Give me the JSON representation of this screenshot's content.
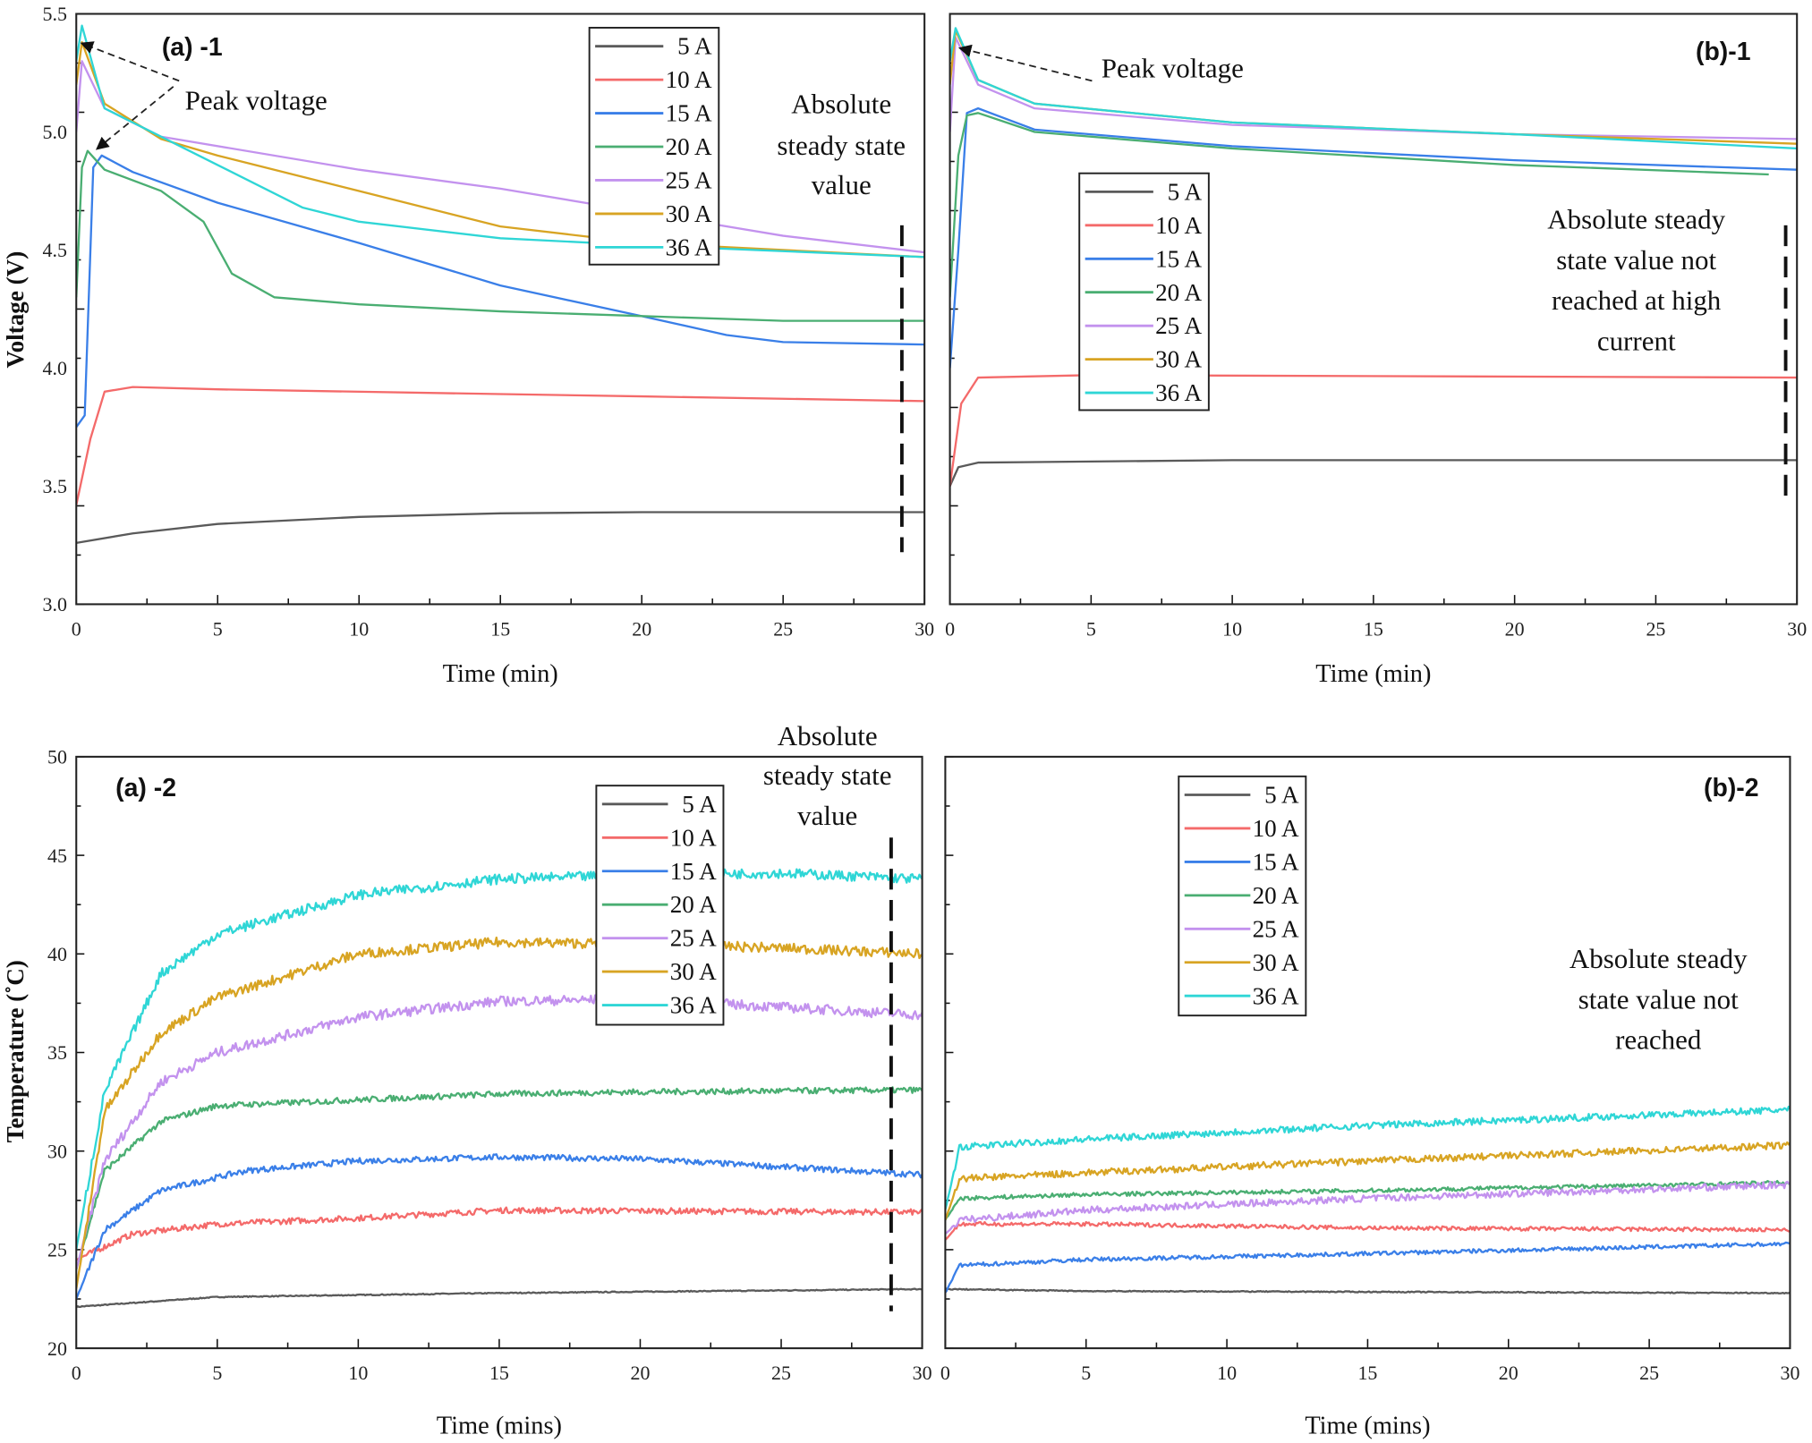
{
  "legend_labels": [
    "5 A",
    "10 A",
    "15 A",
    "20 A",
    "25 A",
    "30 A",
    "36 A"
  ],
  "colors": {
    "5 A": "#5a5a5a",
    "10 A": "#f46a6a",
    "15 A": "#3a7fe8",
    "20 A": "#4aae72",
    "25 A": "#c392ee",
    "30 A": "#d8a423",
    "36 A": "#2fd6d6"
  },
  "chart_data": [
    {
      "type": "line",
      "panel_label": "(a) -1",
      "xlabel": "Time (min)",
      "ylabel": "Voltage (V)",
      "xlim": [
        0,
        30
      ],
      "ylim": [
        3.0,
        5.5
      ],
      "xticks": [
        "0",
        "5",
        "10",
        "15",
        "20",
        "25",
        "30"
      ],
      "yticks": [
        "3.0",
        "3.5",
        "4.0",
        "4.5",
        "5.0",
        "5.5"
      ],
      "legend": "top-center",
      "annotations": [
        "Peak voltage",
        "Absolute",
        "steady state",
        "value"
      ],
      "dashed_line_x": 29.2,
      "series": [
        {
          "name": "5 A",
          "points": [
            [
              0,
              3.26
            ],
            [
              2,
              3.3
            ],
            [
              5,
              3.34
            ],
            [
              10,
              3.37
            ],
            [
              15,
              3.385
            ],
            [
              20,
              3.39
            ],
            [
              30,
              3.39
            ]
          ]
        },
        {
          "name": "10 A",
          "points": [
            [
              0,
              3.42
            ],
            [
              0.5,
              3.7
            ],
            [
              1,
              3.9
            ],
            [
              2,
              3.92
            ],
            [
              5,
              3.91
            ],
            [
              15,
              3.89
            ],
            [
              20,
              3.88
            ],
            [
              30,
              3.86
            ]
          ]
        },
        {
          "name": "15 A",
          "points": [
            [
              0,
              3.75
            ],
            [
              0.3,
              3.8
            ],
            [
              0.6,
              4.85
            ],
            [
              0.9,
              4.9
            ],
            [
              2,
              4.83
            ],
            [
              5,
              4.7
            ],
            [
              10,
              4.53
            ],
            [
              15,
              4.35
            ],
            [
              20,
              4.22
            ],
            [
              23,
              4.14
            ],
            [
              25,
              4.11
            ],
            [
              30,
              4.1
            ]
          ]
        },
        {
          "name": "20 A",
          "points": [
            [
              0,
              4.3
            ],
            [
              0.2,
              4.85
            ],
            [
              0.4,
              4.92
            ],
            [
              1,
              4.84
            ],
            [
              3,
              4.75
            ],
            [
              4.5,
              4.62
            ],
            [
              5.5,
              4.4
            ],
            [
              7,
              4.3
            ],
            [
              10,
              4.27
            ],
            [
              15,
              4.24
            ],
            [
              20,
              4.22
            ],
            [
              25,
              4.2
            ],
            [
              30,
              4.2
            ]
          ]
        },
        {
          "name": "25 A",
          "points": [
            [
              0,
              5.0
            ],
            [
              0.2,
              5.3
            ],
            [
              1,
              5.1
            ],
            [
              3,
              4.98
            ],
            [
              10,
              4.84
            ],
            [
              15,
              4.76
            ],
            [
              20,
              4.66
            ],
            [
              25,
              4.56
            ],
            [
              30,
              4.49
            ]
          ]
        },
        {
          "name": "30 A",
          "points": [
            [
              0,
              5.2
            ],
            [
              0.2,
              5.38
            ],
            [
              1,
              5.12
            ],
            [
              3,
              4.97
            ],
            [
              5,
              4.9
            ],
            [
              10,
              4.75
            ],
            [
              15,
              4.6
            ],
            [
              20,
              4.53
            ],
            [
              25,
              4.5
            ],
            [
              30,
              4.47
            ]
          ]
        },
        {
          "name": "36 A",
          "points": [
            [
              0,
              5.3
            ],
            [
              0.2,
              5.45
            ],
            [
              1,
              5.1
            ],
            [
              3,
              4.98
            ],
            [
              5,
              4.86
            ],
            [
              8,
              4.68
            ],
            [
              10,
              4.62
            ],
            [
              15,
              4.55
            ],
            [
              20,
              4.52
            ],
            [
              30,
              4.47
            ]
          ]
        }
      ]
    },
    {
      "type": "line",
      "panel_label": "(b)-1",
      "xlabel": "Time (min)",
      "ylabel": "",
      "xlim": [
        0,
        30
      ],
      "ylim": [
        3.0,
        5.5
      ],
      "xticks": [
        "0",
        "5",
        "10",
        "15",
        "20",
        "25",
        "30"
      ],
      "yticks": [],
      "legend": "left",
      "annotations": [
        "Peak voltage",
        "Absolute steady",
        "state value not",
        "reached at high",
        "current"
      ],
      "dashed_line_x": 29.6,
      "series": [
        {
          "name": "5 A",
          "points": [
            [
              0,
              3.5
            ],
            [
              0.3,
              3.58
            ],
            [
              1,
              3.6
            ],
            [
              10,
              3.61
            ],
            [
              30,
              3.61
            ]
          ]
        },
        {
          "name": "10 A",
          "points": [
            [
              0,
              3.5
            ],
            [
              0.4,
              3.85
            ],
            [
              1,
              3.96
            ],
            [
              5,
              3.97
            ],
            [
              30,
              3.96
            ]
          ]
        },
        {
          "name": "15 A",
          "points": [
            [
              0,
              4.0
            ],
            [
              0.3,
              4.5
            ],
            [
              0.6,
              5.08
            ],
            [
              1,
              5.1
            ],
            [
              3,
              5.01
            ],
            [
              10,
              4.94
            ],
            [
              20,
              4.88
            ],
            [
              30,
              4.84
            ]
          ]
        },
        {
          "name": "20 A",
          "points": [
            [
              0,
              4.3
            ],
            [
              0.3,
              4.9
            ],
            [
              0.6,
              5.07
            ],
            [
              1,
              5.08
            ],
            [
              3,
              5.0
            ],
            [
              10,
              4.93
            ],
            [
              20,
              4.86
            ],
            [
              29,
              4.82
            ]
          ]
        },
        {
          "name": "25 A",
          "points": [
            [
              0,
              5.0
            ],
            [
              0.2,
              5.4
            ],
            [
              1,
              5.2
            ],
            [
              3,
              5.1
            ],
            [
              10,
              5.03
            ],
            [
              20,
              4.99
            ],
            [
              30,
              4.97
            ]
          ]
        },
        {
          "name": "30 A",
          "points": [
            [
              0,
              5.2
            ],
            [
              0.2,
              5.43
            ],
            [
              1,
              5.22
            ],
            [
              3,
              5.12
            ],
            [
              10,
              5.04
            ],
            [
              20,
              4.99
            ],
            [
              30,
              4.95
            ]
          ]
        },
        {
          "name": "36 A",
          "points": [
            [
              0,
              5.3
            ],
            [
              0.2,
              5.44
            ],
            [
              1,
              5.22
            ],
            [
              3,
              5.12
            ],
            [
              10,
              5.04
            ],
            [
              20,
              4.99
            ],
            [
              30,
              4.93
            ]
          ]
        }
      ]
    },
    {
      "type": "line",
      "panel_label": "(a) -2",
      "xlabel": "Time (mins)",
      "ylabel": "Temperature (˚C)",
      "xlim": [
        0,
        30
      ],
      "ylim": [
        20,
        50
      ],
      "xticks": [
        "0",
        "5",
        "10",
        "15",
        "20",
        "25",
        "30"
      ],
      "yticks": [
        "20",
        "25",
        "30",
        "35",
        "40",
        "45",
        "50"
      ],
      "legend": "top-center",
      "annotations": [
        "Absolute",
        "steady state",
        "value"
      ],
      "dashed_line_x": 28.9,
      "series": [
        {
          "name": "5 A",
          "points": [
            [
              0,
              22.1
            ],
            [
              5,
              22.6
            ],
            [
              15,
              22.8
            ],
            [
              30,
              23.0
            ]
          ]
        },
        {
          "name": "10 A",
          "points": [
            [
              0,
              24.5
            ],
            [
              2,
              25.8
            ],
            [
              5,
              26.3
            ],
            [
              10,
              26.6
            ],
            [
              15,
              27.0
            ],
            [
              30,
              26.9
            ]
          ]
        },
        {
          "name": "15 A",
          "points": [
            [
              0,
              22.5
            ],
            [
              1,
              26
            ],
            [
              3,
              28
            ],
            [
              6,
              29
            ],
            [
              10,
              29.5
            ],
            [
              15,
              29.7
            ],
            [
              20,
              29.6
            ],
            [
              25,
              29.2
            ],
            [
              30,
              28.8
            ]
          ]
        },
        {
          "name": "20 A",
          "points": [
            [
              0,
              24
            ],
            [
              1,
              29
            ],
            [
              3,
              31.5
            ],
            [
              5,
              32.3
            ],
            [
              10,
              32.6
            ],
            [
              15,
              32.9
            ],
            [
              20,
              33
            ],
            [
              30,
              33.1
            ]
          ]
        },
        {
          "name": "25 A",
          "points": [
            [
              0,
              24
            ],
            [
              1,
              29.5
            ],
            [
              3,
              33.5
            ],
            [
              5,
              35
            ],
            [
              10,
              36.8
            ],
            [
              15,
              37.6
            ],
            [
              20,
              37.7
            ],
            [
              25,
              37.3
            ],
            [
              30,
              36.9
            ]
          ]
        },
        {
          "name": "30 A",
          "points": [
            [
              0,
              23
            ],
            [
              1,
              32
            ],
            [
              3,
              36
            ],
            [
              5,
              37.8
            ],
            [
              10,
              40
            ],
            [
              15,
              40.6
            ],
            [
              20,
              40.5
            ],
            [
              25,
              40.3
            ],
            [
              30,
              40
            ]
          ]
        },
        {
          "name": "36 A",
          "points": [
            [
              0,
              25
            ],
            [
              1,
              33
            ],
            [
              3,
              39
            ],
            [
              5,
              41
            ],
            [
              10,
              43
            ],
            [
              15,
              43.8
            ],
            [
              20,
              44
            ],
            [
              25,
              44.1
            ],
            [
              30,
              43.8
            ]
          ]
        }
      ]
    },
    {
      "type": "line",
      "panel_label": "(b)-2",
      "xlabel": "Time (mins)",
      "ylabel": "",
      "xlim": [
        0,
        30
      ],
      "ylim": [
        20,
        50
      ],
      "xticks": [
        "0",
        "5",
        "10",
        "15",
        "20",
        "25",
        "30"
      ],
      "yticks": [],
      "legend": "top-left",
      "annotations": [
        "Absolute steady",
        "state value not",
        "reached"
      ],
      "series": [
        {
          "name": "5 A",
          "points": [
            [
              0,
              23
            ],
            [
              5,
              22.9
            ],
            [
              30,
              22.8
            ]
          ]
        },
        {
          "name": "10 A",
          "points": [
            [
              0,
              25.5
            ],
            [
              0.5,
              26.3
            ],
            [
              5,
              26.3
            ],
            [
              15,
              26.1
            ],
            [
              30,
              26
            ]
          ]
        },
        {
          "name": "15 A",
          "points": [
            [
              0,
              22.8
            ],
            [
              0.5,
              24.2
            ],
            [
              5,
              24.5
            ],
            [
              15,
              24.8
            ],
            [
              30,
              25.3
            ]
          ]
        },
        {
          "name": "20 A",
          "points": [
            [
              0,
              26.5
            ],
            [
              0.5,
              27.6
            ],
            [
              5,
              27.8
            ],
            [
              15,
              28
            ],
            [
              30,
              28.4
            ]
          ]
        },
        {
          "name": "25 A",
          "points": [
            [
              0,
              25.8
            ],
            [
              0.5,
              26.5
            ],
            [
              5,
              27
            ],
            [
              15,
              27.6
            ],
            [
              30,
              28.3
            ]
          ]
        },
        {
          "name": "30 A",
          "points": [
            [
              0,
              26.5
            ],
            [
              0.5,
              28.6
            ],
            [
              5,
              28.9
            ],
            [
              15,
              29.5
            ],
            [
              30,
              30.3
            ]
          ]
        },
        {
          "name": "36 A",
          "points": [
            [
              0,
              27
            ],
            [
              0.5,
              30.2
            ],
            [
              5,
              30.6
            ],
            [
              15,
              31.3
            ],
            [
              30,
              32.1
            ]
          ]
        }
      ]
    }
  ]
}
